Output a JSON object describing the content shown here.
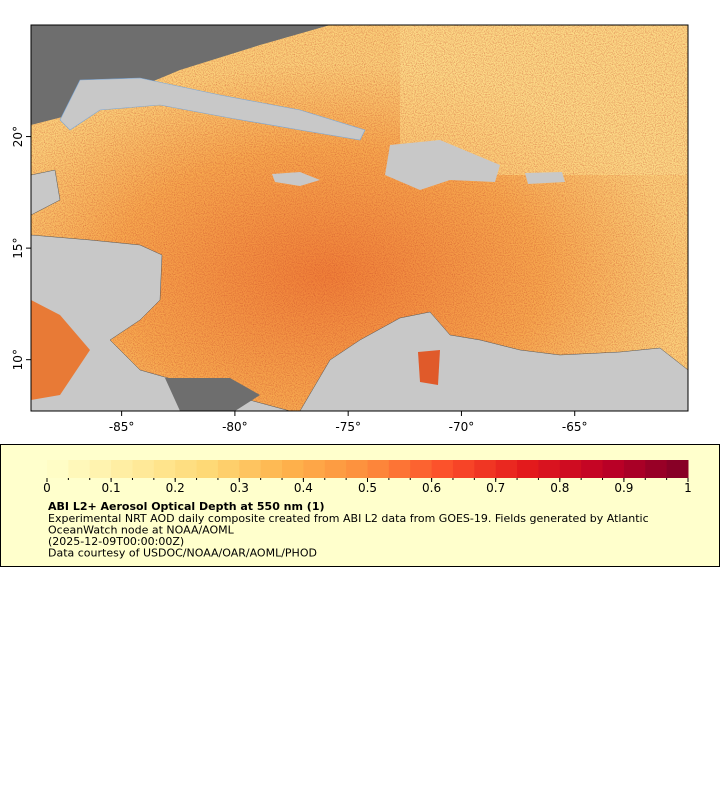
{
  "map": {
    "xlim": [
      -89,
      -60
    ],
    "ylim": [
      7.7,
      25
    ],
    "xticks": [
      {
        "value": -85,
        "label": "-85°"
      },
      {
        "value": -80,
        "label": "-80°"
      },
      {
        "value": -75,
        "label": "-75°"
      },
      {
        "value": -70,
        "label": "-70°"
      },
      {
        "value": -65,
        "label": "-65°"
      }
    ],
    "yticks": [
      {
        "value": 10,
        "label": "10°"
      },
      {
        "value": 15,
        "label": "15°"
      },
      {
        "value": 20,
        "label": "20°"
      }
    ]
  },
  "colorbar": {
    "lim": [
      0,
      1
    ],
    "ticks": [
      0,
      0.1,
      0.2,
      0.3,
      0.4,
      0.5,
      0.6,
      0.7,
      0.8,
      0.9,
      1
    ],
    "colormap": [
      "#ffffcc",
      "#ffeda0",
      "#fed976",
      "#feb24c",
      "#fd8d3c",
      "#fc4e2a",
      "#e31a1c",
      "#bd0026",
      "#800026"
    ]
  },
  "legend": {
    "title": "ABI L2+ Aerosol Optical Depth at 550 nm (1)",
    "lines": [
      "Experimental NRT AOD daily composite created from ABI L2 data from GOES-19. Fields generated by Atlantic",
      "OceanWatch node at NOAA/AOML",
      "(2025-12-09T00:00:00Z)",
      "Data courtesy of USDOC/NOAA/OAR/AOML/PHOD"
    ]
  }
}
